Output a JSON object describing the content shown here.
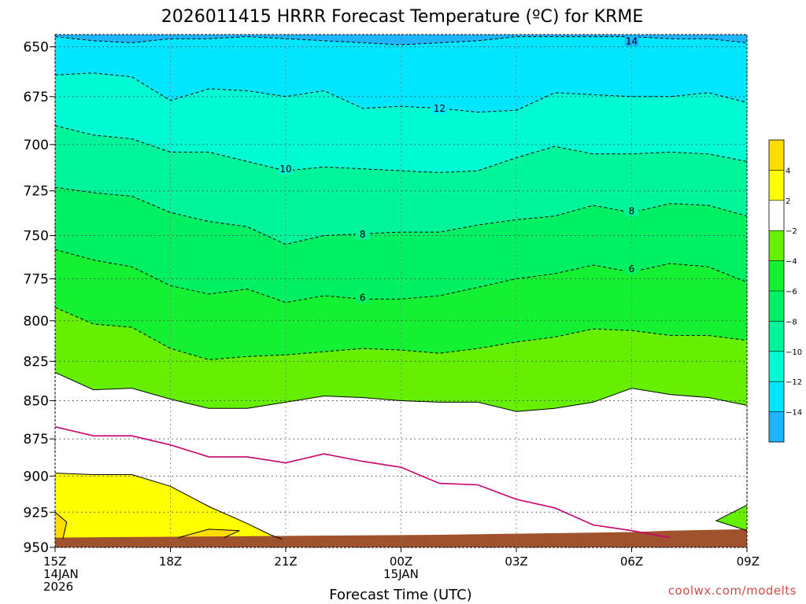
{
  "chart_data": {
    "type": "contour",
    "title": "2026011415 HRRR Forecast Temperature (ºC) for KRME",
    "xlabel": "Forecast Time (UTC)",
    "ylabel": "",
    "x_ticks": [
      {
        "hour": 0,
        "label": "15Z",
        "sub": [
          "14JAN",
          "2026"
        ]
      },
      {
        "hour": 3,
        "label": "18Z"
      },
      {
        "hour": 6,
        "label": "21Z"
      },
      {
        "hour": 9,
        "label": "00Z",
        "sub": [
          "15JAN"
        ]
      },
      {
        "hour": 12,
        "label": "03Z"
      },
      {
        "hour": 15,
        "label": "06Z"
      },
      {
        "hour": 18,
        "label": "09Z"
      }
    ],
    "xlim": [
      0,
      18
    ],
    "y_ticks": [
      650,
      675,
      700,
      725,
      750,
      775,
      800,
      825,
      850,
      875,
      900,
      925,
      950
    ],
    "ylim": [
      950,
      644
    ],
    "ylog": true,
    "grid": true,
    "colorbar": {
      "placement": "right",
      "bands": [
        {
          "min": -16,
          "max": -14,
          "color": "#1eb4ff"
        },
        {
          "min": -14,
          "max": -12,
          "color": "#00e6ff"
        },
        {
          "min": -12,
          "max": -10,
          "color": "#00fad2"
        },
        {
          "min": -10,
          "max": -8,
          "color": "#00f59b"
        },
        {
          "min": -8,
          "max": -6,
          "color": "#00f064"
        },
        {
          "min": -6,
          "max": -4,
          "color": "#14f032"
        },
        {
          "min": -4,
          "max": -2,
          "color": "#64f000"
        },
        {
          "min": -2,
          "max": 2,
          "color": "#ffffff"
        },
        {
          "min": 2,
          "max": 4,
          "color": "#ffff00"
        },
        {
          "min": 4,
          "max": 6,
          "color": "#ffdc00"
        }
      ],
      "ticks": [
        "-14",
        "-12",
        "-10",
        "-8",
        "-6",
        "-4",
        "-2",
        "2",
        "4"
      ]
    },
    "contours": [
      {
        "level": -14,
        "dashed": true,
        "label": "14",
        "points": [
          [
            0,
            645
          ],
          [
            1,
            647
          ],
          [
            2,
            648
          ],
          [
            3,
            646
          ],
          [
            4,
            646
          ],
          [
            5,
            645
          ],
          [
            6,
            646
          ],
          [
            7,
            647
          ],
          [
            8,
            648
          ],
          [
            9,
            649
          ],
          [
            10,
            648
          ],
          [
            11,
            647
          ],
          [
            12,
            645
          ],
          [
            13,
            645
          ],
          [
            14,
            645
          ],
          [
            15,
            645
          ],
          [
            16,
            646
          ],
          [
            17,
            646
          ],
          [
            18,
            648
          ]
        ]
      },
      {
        "level": -12,
        "dashed": true,
        "label": "12",
        "points": [
          [
            0,
            664
          ],
          [
            1,
            663
          ],
          [
            2,
            665
          ],
          [
            3,
            677
          ],
          [
            4,
            671
          ],
          [
            5,
            672
          ],
          [
            6,
            675
          ],
          [
            7,
            672
          ],
          [
            8,
            681
          ],
          [
            9,
            680
          ],
          [
            10,
            681
          ],
          [
            11,
            683
          ],
          [
            12,
            682
          ],
          [
            13,
            673
          ],
          [
            14,
            674
          ],
          [
            15,
            675
          ],
          [
            16,
            675
          ],
          [
            17,
            673
          ],
          [
            18,
            678
          ]
        ]
      },
      {
        "level": -10,
        "dashed": true,
        "label": "10",
        "points": [
          [
            0,
            690
          ],
          [
            1,
            695
          ],
          [
            2,
            697
          ],
          [
            3,
            704
          ],
          [
            4,
            704
          ],
          [
            5,
            709
          ],
          [
            6,
            714
          ],
          [
            7,
            712
          ],
          [
            8,
            713
          ],
          [
            9,
            714
          ],
          [
            10,
            715
          ],
          [
            11,
            714
          ],
          [
            12,
            707
          ],
          [
            13,
            701
          ],
          [
            14,
            705
          ],
          [
            15,
            705
          ],
          [
            16,
            704
          ],
          [
            17,
            705
          ],
          [
            18,
            709
          ]
        ]
      },
      {
        "level": -8,
        "dashed": true,
        "label": "8",
        "points": [
          [
            0,
            723
          ],
          [
            1,
            726
          ],
          [
            2,
            728
          ],
          [
            3,
            737
          ],
          [
            4,
            742
          ],
          [
            5,
            745
          ],
          [
            6,
            755
          ],
          [
            7,
            750
          ],
          [
            8,
            749
          ],
          [
            9,
            748
          ],
          [
            10,
            748
          ],
          [
            11,
            744
          ],
          [
            12,
            741
          ],
          [
            13,
            739
          ],
          [
            14,
            733
          ],
          [
            15,
            737
          ],
          [
            16,
            732
          ],
          [
            17,
            733
          ],
          [
            18,
            739
          ]
        ]
      },
      {
        "level": -6,
        "dashed": true,
        "label": "6",
        "points": [
          [
            0,
            758
          ],
          [
            1,
            764
          ],
          [
            2,
            768
          ],
          [
            3,
            779
          ],
          [
            4,
            784
          ],
          [
            5,
            781
          ],
          [
            6,
            789
          ],
          [
            7,
            785
          ],
          [
            8,
            787
          ],
          [
            9,
            787
          ],
          [
            10,
            785
          ],
          [
            11,
            780
          ],
          [
            12,
            775
          ],
          [
            13,
            772
          ],
          [
            14,
            767
          ],
          [
            15,
            771
          ],
          [
            16,
            766
          ],
          [
            17,
            768
          ],
          [
            18,
            777
          ]
        ]
      },
      {
        "level": -4,
        "dashed": true,
        "label": "",
        "points": [
          [
            0,
            792
          ],
          [
            1,
            802
          ],
          [
            2,
            804
          ],
          [
            3,
            817
          ],
          [
            4,
            824
          ],
          [
            5,
            822
          ],
          [
            6,
            821
          ],
          [
            7,
            819
          ],
          [
            8,
            817
          ],
          [
            9,
            818
          ],
          [
            10,
            820
          ],
          [
            11,
            817
          ],
          [
            12,
            813
          ],
          [
            13,
            810
          ],
          [
            14,
            805
          ],
          [
            15,
            806
          ],
          [
            16,
            809
          ],
          [
            17,
            809
          ],
          [
            18,
            812
          ]
        ]
      },
      {
        "level": -2,
        "dashed": false,
        "label": "",
        "points": [
          [
            0,
            832
          ],
          [
            1,
            843
          ],
          [
            2,
            842
          ],
          [
            3,
            849
          ],
          [
            4,
            855
          ],
          [
            5,
            855
          ],
          [
            6,
            851
          ],
          [
            7,
            847
          ],
          [
            8,
            848
          ],
          [
            9,
            850
          ],
          [
            10,
            851
          ],
          [
            11,
            851
          ],
          [
            12,
            857
          ],
          [
            13,
            855
          ],
          [
            14,
            851
          ],
          [
            15,
            842
          ],
          [
            16,
            846
          ],
          [
            17,
            848
          ],
          [
            18,
            853
          ]
        ]
      },
      {
        "level": 0,
        "dashed": false,
        "label": "",
        "color": "#c8006e",
        "points": [
          [
            0,
            867
          ],
          [
            1,
            873
          ],
          [
            2,
            873
          ],
          [
            3,
            879
          ],
          [
            4,
            887
          ],
          [
            5,
            887
          ],
          [
            6,
            891
          ],
          [
            7,
            885
          ],
          [
            8,
            890
          ],
          [
            9,
            894
          ],
          [
            10,
            905
          ],
          [
            11,
            906
          ],
          [
            12,
            916
          ],
          [
            13,
            922
          ],
          [
            14,
            934
          ],
          [
            15,
            938
          ],
          [
            16,
            943
          ]
        ]
      }
    ],
    "warm_region": {
      "level": 2,
      "label": "",
      "points": [
        [
          0,
          898
        ],
        [
          1,
          899
        ],
        [
          2,
          899
        ],
        [
          3,
          907
        ],
        [
          4,
          921
        ],
        [
          5,
          933
        ],
        [
          5.6,
          941
        ],
        [
          5.9,
          944
        ],
        [
          4,
          944
        ],
        [
          0,
          944
        ]
      ]
    },
    "warm_core": {
      "level": 4,
      "label": "",
      "points": [
        [
          0,
          925
        ],
        [
          0.3,
          932
        ],
        [
          0.2,
          944
        ],
        [
          0,
          944
        ]
      ]
    },
    "ground": {
      "color": "#a0522d",
      "points": [
        [
          0,
          943
        ],
        [
          5,
          942
        ],
        [
          10,
          941
        ],
        [
          15,
          939
        ],
        [
          16,
          938
        ],
        [
          18,
          937
        ]
      ]
    },
    "green_corner": {
      "points": [
        [
          18,
          920
        ],
        [
          17.2,
          931
        ],
        [
          18,
          938
        ]
      ]
    },
    "credit": "coolwx.com/modelts"
  }
}
